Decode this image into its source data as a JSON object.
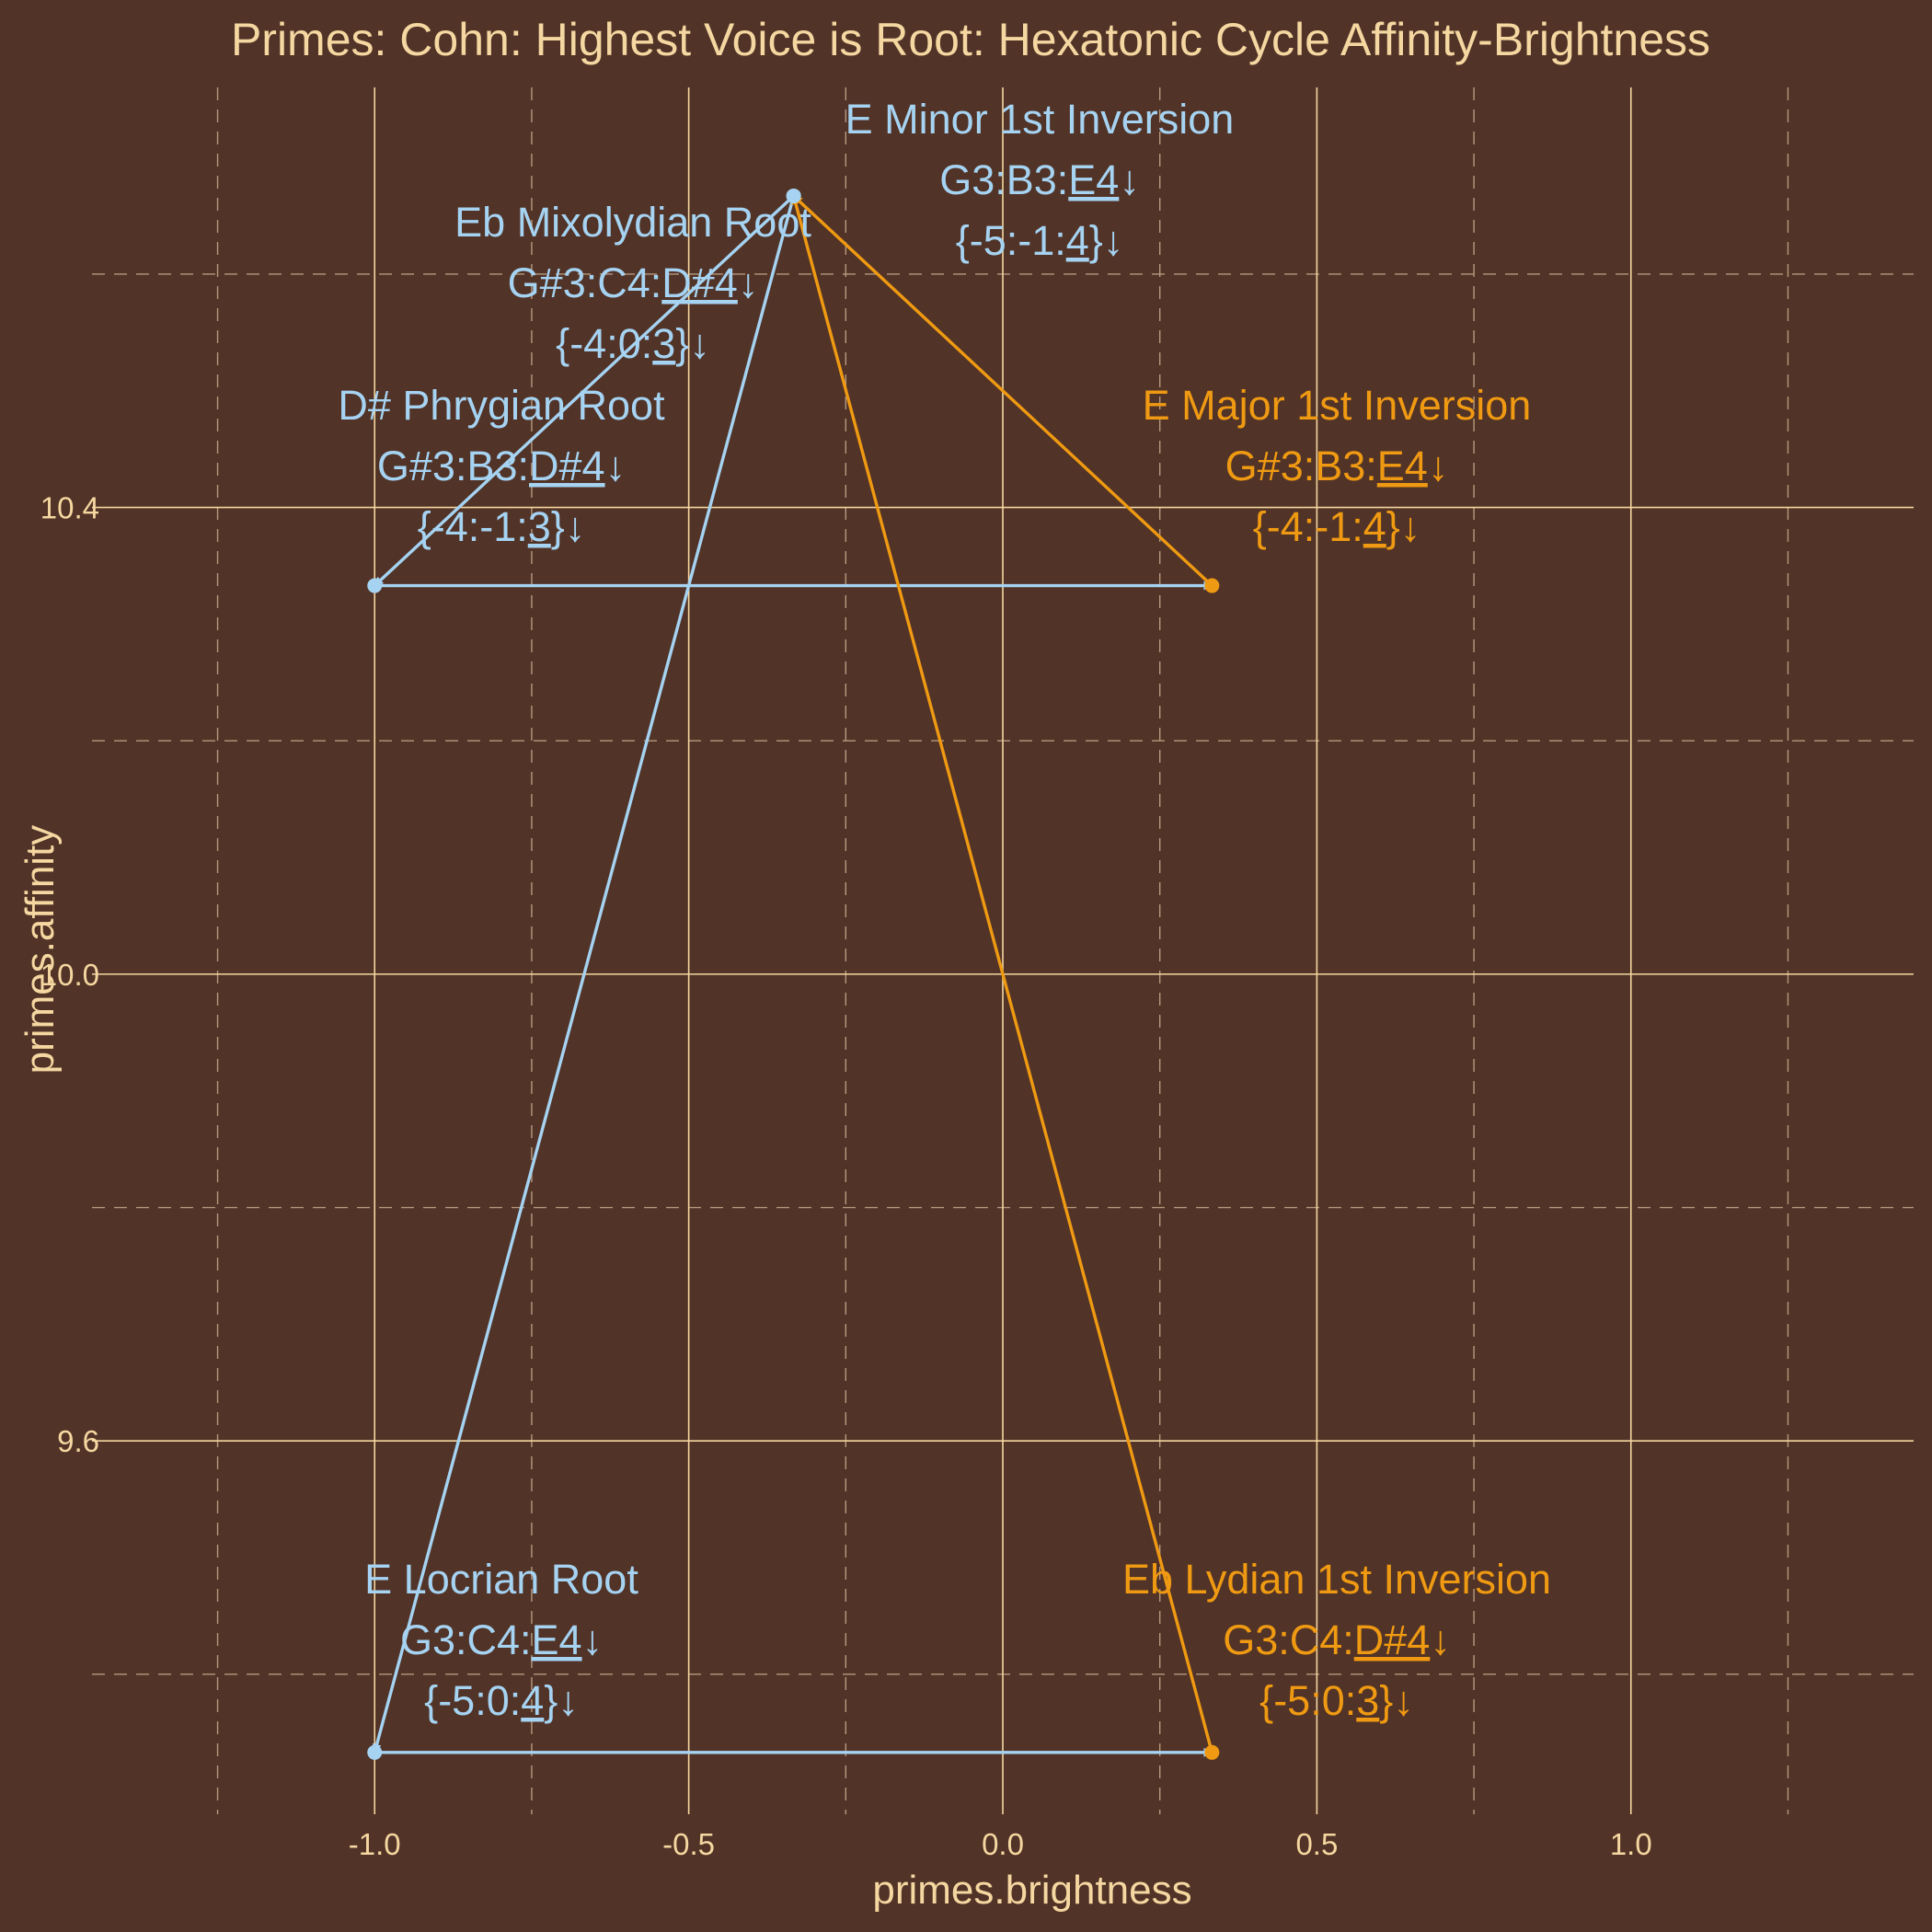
{
  "title": "Primes: Cohn: Highest Voice is Root: Hexatonic Cycle Affinity-Brightness",
  "colors": {
    "background": "#513327",
    "text": "#F5D7A1",
    "grid": "#F5D7A1",
    "minor_grid": "#B59A7E",
    "blue": "#A6D3F2",
    "orange": "#EF9A12"
  },
  "chart_data": {
    "type": "scatter",
    "title": "Primes: Cohn: Highest Voice is Root: Hexatonic Cycle Affinity-Brightness",
    "xlabel": "primes.brightness",
    "ylabel": "primes.affinity",
    "xlim": [
      -1.45,
      1.45
    ],
    "ylim": [
      9.28,
      10.76
    ],
    "x_ticks": [
      -1.0,
      -0.5,
      0.0,
      0.5,
      1.0
    ],
    "x_tick_labels": [
      "-1.0",
      "-0.5",
      "0.0",
      "0.5",
      "1.0"
    ],
    "y_ticks": [
      9.6,
      10.0,
      10.4
    ],
    "y_tick_labels": [
      "9.6",
      "10.0",
      "10.4"
    ],
    "x_minor_ticks": [
      -1.25,
      -0.75,
      -0.25,
      0.25,
      0.75,
      1.25
    ],
    "y_minor_ticks": [
      9.4,
      9.8,
      10.2,
      10.6
    ],
    "grid": true,
    "points": [
      {
        "id": "e-minor",
        "x": -0.333,
        "y": 10.667,
        "color": "blue",
        "label_lines": [
          {
            "text": "E Minor 1st Inversion"
          },
          {
            "pre": "G3:B3:",
            "u": "E4",
            "post": "↓"
          },
          {
            "pre": "{-5:-1:",
            "u": "4",
            "post": "}↓"
          }
        ]
      },
      {
        "id": "eb-mixolydian",
        "x": -0.333,
        "y": 10.667,
        "color": "blue",
        "label_lines": [
          {
            "text": "Eb Mixolydian Root"
          },
          {
            "pre": "G#3:C4:",
            "u": "D#4",
            "post": "↓"
          },
          {
            "pre": "{-4:0:",
            "u": "3",
            "post": "}↓"
          }
        ]
      },
      {
        "id": "d-sharp-phrygian",
        "x": -1.0,
        "y": 10.333,
        "color": "blue",
        "label_lines": [
          {
            "text": "D# Phrygian Root"
          },
          {
            "pre": "G#3:B3:",
            "u": "D#4",
            "post": "↓"
          },
          {
            "pre": "{-4:-1:",
            "u": "3",
            "post": "}↓"
          }
        ]
      },
      {
        "id": "e-major",
        "x": 0.333,
        "y": 10.333,
        "color": "orange",
        "label_lines": [
          {
            "text": "E Major 1st Inversion"
          },
          {
            "pre": "G#3:B3:",
            "u": "E4",
            "post": "↓"
          },
          {
            "pre": "{-4:-1:",
            "u": "4",
            "post": "}↓"
          }
        ]
      },
      {
        "id": "e-locrian",
        "x": -1.0,
        "y": 9.333,
        "color": "blue",
        "label_lines": [
          {
            "text": "E Locrian Root"
          },
          {
            "pre": "G3:C4:",
            "u": "E4",
            "post": "↓"
          },
          {
            "pre": "{-5:0:",
            "u": "4",
            "post": "}↓"
          }
        ]
      },
      {
        "id": "eb-lydian",
        "x": 0.333,
        "y": 9.333,
        "color": "orange",
        "label_lines": [
          {
            "text": "Eb Lydian 1st Inversion"
          },
          {
            "pre": "G3:C4:",
            "u": "D#4",
            "post": "↓"
          },
          {
            "pre": "{-5:0:",
            "u": "3",
            "post": "}↓"
          }
        ]
      }
    ],
    "arrows": [
      {
        "from": [
          -0.333,
          10.667
        ],
        "to": [
          -1.0,
          10.333
        ],
        "color": "blue"
      },
      {
        "from": [
          -1.0,
          10.333
        ],
        "to": [
          0.333,
          10.333
        ],
        "color": "blue"
      },
      {
        "from": [
          0.333,
          10.333
        ],
        "to": [
          -0.333,
          10.667
        ],
        "color": "orange"
      },
      {
        "from": [
          -0.333,
          10.667
        ],
        "to": [
          -1.0,
          9.333
        ],
        "color": "blue"
      },
      {
        "from": [
          -1.0,
          9.333
        ],
        "to": [
          0.333,
          9.333
        ],
        "color": "blue"
      },
      {
        "from": [
          0.333,
          9.333
        ],
        "to": [
          -0.333,
          10.667
        ],
        "color": "orange"
      }
    ]
  }
}
